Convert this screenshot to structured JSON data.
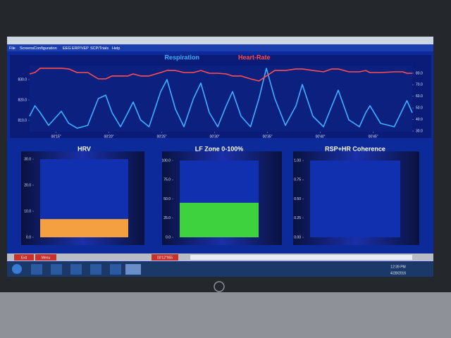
{
  "menu": [
    "File",
    "Screens",
    "Configuration",
    "EEG",
    "ERP/VEP",
    "SCP/Trials",
    "Help"
  ],
  "chart_data": [
    {
      "type": "line",
      "x": [
        12.5,
        13.0,
        13.5,
        14.3,
        15.5,
        16.2,
        17.0,
        18.0,
        19.0,
        19.7,
        20.3,
        21.1,
        21.8,
        22.3,
        23.0,
        23.8,
        24.9,
        25.5,
        26.3,
        27.1,
        28.0,
        28.7,
        29.5,
        30.3,
        31.1,
        31.7,
        32.5,
        33.4,
        34.2,
        34.9,
        35.7,
        36.7,
        37.7,
        38.3,
        39.3,
        40.3,
        41.1,
        41.7,
        42.7,
        43.7,
        44.3,
        44.7,
        45.7,
        47.0,
        47.8,
        48.2,
        48.7
      ],
      "series": [
        {
          "name": "Respiration",
          "color": "#3fb0ff",
          "values": [
            812.1,
            817.2,
            813.8,
            807.6,
            814.5,
            808.6,
            806.2,
            807.6,
            820.7,
            822.4,
            813.8,
            806.9,
            813.8,
            819.0,
            810.3,
            806.9,
            824.1,
            830.0,
            815.5,
            806.9,
            820.7,
            828.3,
            813.8,
            806.9,
            817.2,
            824.1,
            812.1,
            806.9,
            820.7,
            835.5,
            820.7,
            807.6,
            817.2,
            827.6,
            812.1,
            806.9,
            817.2,
            824.8,
            810.3,
            806.9,
            813.8,
            817.2,
            808.6,
            806.9,
            815.5,
            819.7,
            813.8
          ]
        },
        {
          "name": "Heart-Rate",
          "color": "#ff4d4d",
          "axis": "y2",
          "values": [
            79.4,
            80.6,
            84.3,
            84.3,
            84.3,
            83.7,
            80.6,
            80.6,
            75.1,
            75.1,
            77.6,
            77.6,
            77.6,
            79.4,
            77.6,
            77.6,
            80.6,
            82.4,
            82.4,
            80.6,
            80.6,
            82.4,
            80.0,
            80.0,
            79.4,
            77.6,
            77.6,
            75.1,
            73.3,
            77.6,
            82.4,
            82.4,
            83.7,
            83.7,
            82.4,
            81.2,
            83.7,
            83.7,
            81.2,
            81.2,
            82.4,
            80.6,
            80.6,
            81.2,
            81.2,
            80.0,
            80.0
          ]
        }
      ],
      "xlim": [
        12.5,
        48.7
      ],
      "xticks": [
        {
          "value": 15,
          "label": "00'15\""
        },
        {
          "value": 20,
          "label": "00'20\""
        },
        {
          "value": 25,
          "label": "00'25\""
        },
        {
          "value": 30,
          "label": "00'30\""
        },
        {
          "value": 35,
          "label": "00'35\""
        },
        {
          "value": 40,
          "label": "00'40\""
        },
        {
          "value": 45,
          "label": "00'45\""
        }
      ],
      "ylim": [
        804.5,
        836.9
      ],
      "yticks": [
        {
          "value": 810,
          "label": "810.0"
        },
        {
          "value": 820,
          "label": "820.0"
        },
        {
          "value": 830,
          "label": "830.0"
        }
      ],
      "y2lim": [
        29.4,
        86.7
      ],
      "y2ticks": [
        {
          "value": 30,
          "label": "30.0"
        },
        {
          "value": 40,
          "label": "40.0"
        },
        {
          "value": 50,
          "label": "50.0"
        },
        {
          "value": 60,
          "label": "60.0"
        },
        {
          "value": 70,
          "label": "70.0"
        },
        {
          "value": 80,
          "label": "80.0"
        }
      ]
    },
    {
      "type": "bar",
      "title": "HRV",
      "categories": [
        null
      ],
      "values": [
        7
      ],
      "color": "#f5a040",
      "ylim": [
        0,
        30
      ],
      "yticks": [
        {
          "value": 0,
          "label": "0.0"
        },
        {
          "value": 10,
          "label": "10.0"
        },
        {
          "value": 20,
          "label": "20.0"
        },
        {
          "value": 30,
          "label": "30.0"
        }
      ]
    },
    {
      "type": "bar",
      "title": "LF Zone 0-100%",
      "categories": [
        null
      ],
      "values": [
        45
      ],
      "color": "#3fd23f",
      "ylim": [
        0,
        100
      ],
      "yticks": [
        {
          "value": 0,
          "label": "0.0"
        },
        {
          "value": 25,
          "label": "25.0"
        },
        {
          "value": 50,
          "label": "50.0"
        },
        {
          "value": 75,
          "label": "75.0"
        },
        {
          "value": 100,
          "label": "100.0"
        }
      ]
    },
    {
      "type": "bar",
      "title": "RSP+HR Coherence",
      "categories": [
        null
      ],
      "values": [
        0
      ],
      "color": "#3fd23f",
      "ylim": [
        0,
        1
      ],
      "yticks": [
        {
          "value": 0,
          "label": "0.00"
        },
        {
          "value": 0.25,
          "label": "0.25"
        },
        {
          "value": 0.5,
          "label": "0.50"
        },
        {
          "value": 0.75,
          "label": "0.75"
        },
        {
          "value": 1,
          "label": "1.00"
        }
      ]
    }
  ],
  "controls": {
    "exit": "Exit",
    "menu": "Menu",
    "timer": "00'12\"955"
  },
  "taskbar": {
    "time": "12:39 PM",
    "date": "4/28/2016"
  }
}
